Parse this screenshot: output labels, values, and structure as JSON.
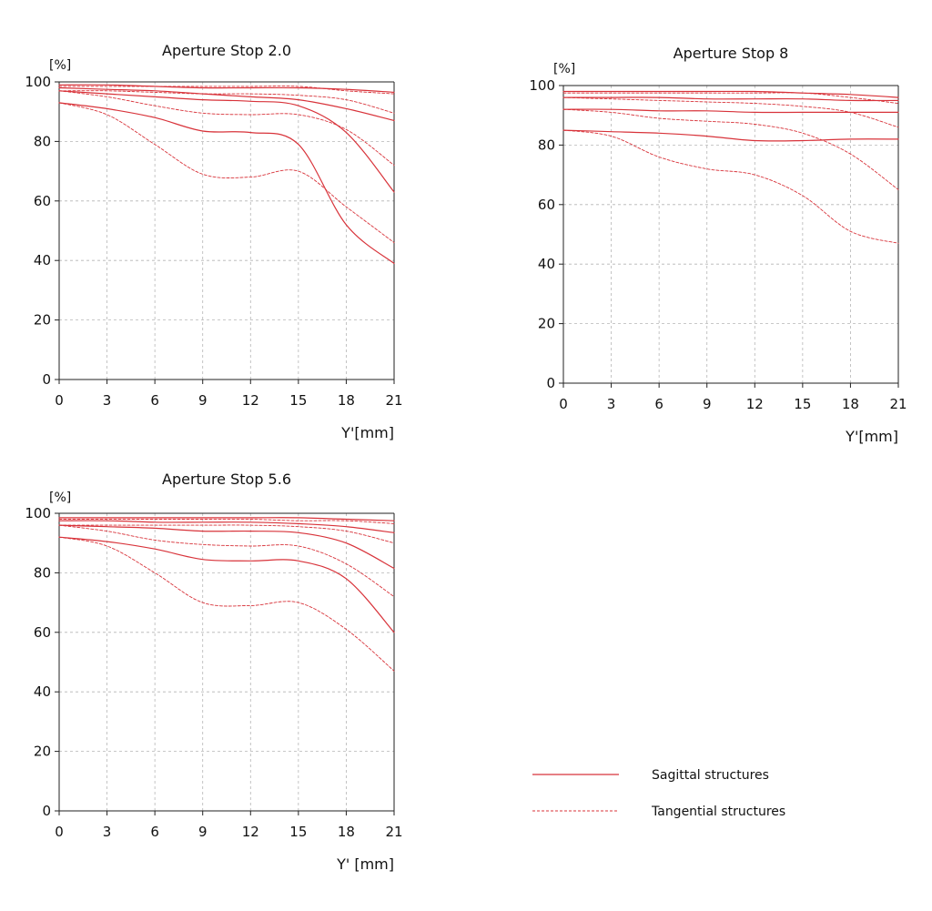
{
  "colors": {
    "series": "#d8333a",
    "axis": "#222222",
    "grid": "#b5b5b5"
  },
  "legend": {
    "items": [
      {
        "label": "Sagittal structures",
        "style": "solid"
      },
      {
        "label": "Tangential structures",
        "style": "dashed"
      }
    ]
  },
  "chart_data": [
    {
      "type": "line",
      "title": "Aperture Stop 2.0",
      "ylabel": "[%]",
      "xlabel": "Y'[mm]",
      "xlim": [
        0,
        21
      ],
      "ylim": [
        0,
        100
      ],
      "xticks": [
        0,
        3,
        6,
        9,
        12,
        15,
        18,
        21
      ],
      "yticks": [
        0,
        20,
        40,
        60,
        80,
        100
      ],
      "grid": true,
      "series": [
        {
          "style": "solid",
          "x": [
            0,
            3,
            6,
            9,
            12,
            15,
            18,
            21
          ],
          "y": [
            99,
            99,
            98.5,
            98,
            98,
            98,
            97.5,
            96.5
          ]
        },
        {
          "style": "dashed",
          "x": [
            0,
            3,
            6,
            9,
            12,
            15,
            18,
            21
          ],
          "y": [
            98.5,
            98.5,
            98.5,
            98.5,
            98.5,
            98.5,
            97,
            96
          ]
        },
        {
          "style": "solid",
          "x": [
            0,
            3,
            6,
            9,
            12,
            15,
            18,
            21
          ],
          "y": [
            98,
            97.5,
            97,
            96,
            95,
            94,
            91,
            87
          ]
        },
        {
          "style": "dashed",
          "x": [
            0,
            3,
            6,
            9,
            12,
            15,
            18,
            21
          ],
          "y": [
            97,
            97,
            96.5,
            96,
            96,
            95.5,
            94,
            89.5
          ]
        },
        {
          "style": "solid",
          "x": [
            0,
            3,
            6,
            9,
            12,
            15,
            18,
            21
          ],
          "y": [
            97,
            96,
            95,
            94,
            93.5,
            92,
            83,
            63
          ]
        },
        {
          "style": "dashed",
          "x": [
            0,
            3,
            6,
            9,
            12,
            15,
            18,
            21
          ],
          "y": [
            97,
            95,
            92,
            89.5,
            89,
            89,
            84,
            72
          ]
        },
        {
          "style": "solid",
          "x": [
            0,
            3,
            6,
            9,
            12,
            15,
            18,
            21
          ],
          "y": [
            93,
            91,
            88,
            83.5,
            83,
            79,
            52,
            39
          ]
        },
        {
          "style": "dashed",
          "x": [
            0,
            3,
            6,
            9,
            12,
            15,
            18,
            21
          ],
          "y": [
            93,
            89,
            79,
            69,
            68,
            70,
            58,
            46
          ]
        }
      ]
    },
    {
      "type": "line",
      "title": "Aperture Stop 8",
      "ylabel": "[%]",
      "xlabel": "Y'[mm]",
      "xlim": [
        0,
        21
      ],
      "ylim": [
        0,
        100
      ],
      "xticks": [
        0,
        3,
        6,
        9,
        12,
        15,
        18,
        21
      ],
      "yticks": [
        0,
        20,
        40,
        60,
        80,
        100
      ],
      "grid": true,
      "series": [
        {
          "style": "solid",
          "x": [
            0,
            3,
            6,
            9,
            12,
            15,
            18,
            21
          ],
          "y": [
            98,
            98,
            98,
            98,
            98,
            97.5,
            97,
            96
          ]
        },
        {
          "style": "dashed",
          "x": [
            0,
            3,
            6,
            9,
            12,
            15,
            18,
            21
          ],
          "y": [
            97.5,
            97.5,
            97.5,
            97.5,
            97.5,
            97.5,
            96,
            94
          ]
        },
        {
          "style": "solid",
          "x": [
            0,
            3,
            6,
            9,
            12,
            15,
            18,
            21
          ],
          "y": [
            96,
            96,
            96,
            95.5,
            95.5,
            95.5,
            95,
            95
          ]
        },
        {
          "style": "dashed",
          "x": [
            0,
            3,
            6,
            9,
            12,
            15,
            18,
            21
          ],
          "y": [
            96,
            95.5,
            95,
            94.5,
            94,
            93,
            91,
            86
          ]
        },
        {
          "style": "solid",
          "x": [
            0,
            3,
            6,
            9,
            12,
            15,
            18,
            21
          ],
          "y": [
            92,
            92,
            91.5,
            91.5,
            91,
            91,
            91,
            91
          ]
        },
        {
          "style": "dashed",
          "x": [
            0,
            3,
            6,
            9,
            12,
            15,
            18,
            21
          ],
          "y": [
            92,
            91,
            89,
            88,
            87,
            84,
            77,
            65
          ]
        },
        {
          "style": "solid",
          "x": [
            0,
            3,
            6,
            9,
            12,
            15,
            18,
            21
          ],
          "y": [
            85,
            84.5,
            84,
            83,
            81.5,
            81.5,
            82,
            82
          ]
        },
        {
          "style": "dashed",
          "x": [
            0,
            3,
            6,
            9,
            12,
            15,
            18,
            21
          ],
          "y": [
            85,
            83,
            76,
            72,
            70,
            63,
            51,
            47
          ]
        }
      ]
    },
    {
      "type": "line",
      "title": "Aperture Stop 5.6",
      "ylabel": "[%]",
      "xlabel": "Y' [mm]",
      "xlim": [
        0,
        21
      ],
      "ylim": [
        0,
        100
      ],
      "xticks": [
        0,
        3,
        6,
        9,
        12,
        15,
        18,
        21
      ],
      "yticks": [
        0,
        20,
        40,
        60,
        80,
        100
      ],
      "grid": true,
      "series": [
        {
          "style": "solid",
          "x": [
            0,
            3,
            6,
            9,
            12,
            15,
            18,
            21
          ],
          "y": [
            98.5,
            98.5,
            98.5,
            98.5,
            98.5,
            98.5,
            98,
            97.5
          ]
        },
        {
          "style": "dashed",
          "x": [
            0,
            3,
            6,
            9,
            12,
            15,
            18,
            21
          ],
          "y": [
            98,
            98,
            98,
            98,
            98,
            97.5,
            97.5,
            96.5
          ]
        },
        {
          "style": "solid",
          "x": [
            0,
            3,
            6,
            9,
            12,
            15,
            18,
            21
          ],
          "y": [
            97.5,
            97.5,
            97,
            97,
            97,
            96.5,
            95.5,
            93.5
          ]
        },
        {
          "style": "dashed",
          "x": [
            0,
            3,
            6,
            9,
            12,
            15,
            18,
            21
          ],
          "y": [
            96,
            96,
            96,
            96,
            96,
            95.5,
            94,
            90
          ]
        },
        {
          "style": "solid",
          "x": [
            0,
            3,
            6,
            9,
            12,
            15,
            18,
            21
          ],
          "y": [
            96,
            95.5,
            95,
            94,
            94,
            93.5,
            90,
            81.5
          ]
        },
        {
          "style": "dashed",
          "x": [
            0,
            3,
            6,
            9,
            12,
            15,
            18,
            21
          ],
          "y": [
            96,
            94,
            91,
            89.5,
            89,
            89,
            83,
            72
          ]
        },
        {
          "style": "solid",
          "x": [
            0,
            3,
            6,
            9,
            12,
            15,
            18,
            21
          ],
          "y": [
            92,
            90.5,
            88,
            84.5,
            84,
            84,
            78,
            60
          ]
        },
        {
          "style": "dashed",
          "x": [
            0,
            3,
            6,
            9,
            12,
            15,
            18,
            21
          ],
          "y": [
            92,
            89,
            80,
            70,
            69,
            70,
            61,
            47
          ]
        }
      ]
    }
  ]
}
